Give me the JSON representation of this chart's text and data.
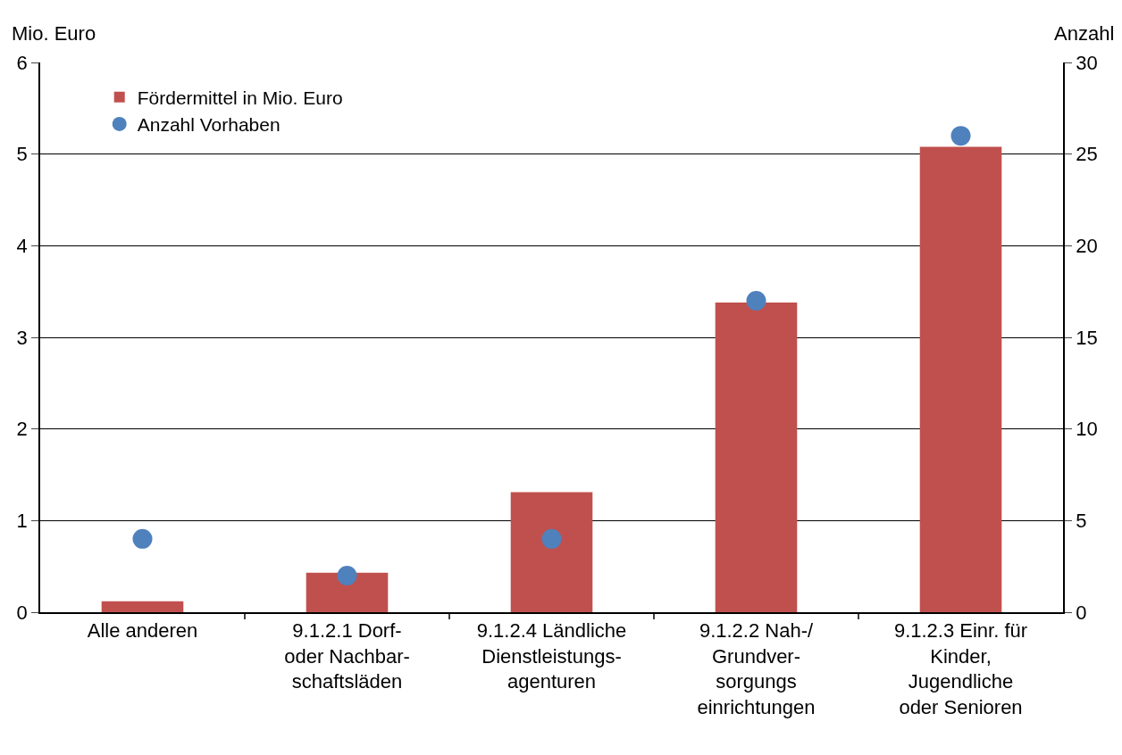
{
  "chart_data": {
    "type": "bar",
    "ylabel": "Mio. Euro",
    "y2label": "Anzahl",
    "categories": [
      "Alle anderen",
      "9.1.2.1 Dorf-\noder Nachbar-\nschaftsläden",
      "9.1.2.4 Ländliche\nDienstleistungs-\nagenturen",
      "9.1.2.2 Nah-/\nGrundver-\nsorgungs\neinrichtungen",
      "9.1.2.3 Einr. für\nKinder,\nJugendliche\noder Senioren"
    ],
    "series": [
      {
        "name": "Fördermittel in Mio. Euro",
        "color": "#c0504d",
        "values": [
          0.12,
          0.43,
          1.31,
          3.38,
          5.08
        ]
      },
      {
        "name": "Anzahl Vorhaben",
        "type": "scatter",
        "axis": "y2",
        "marker": "circle",
        "color": "#4f81bd",
        "values": [
          4,
          2,
          4,
          17,
          26
        ]
      }
    ],
    "ylim": [
      0,
      6
    ],
    "yticks": [
      0,
      1,
      2,
      3,
      4,
      5,
      6
    ],
    "y2lim": [
      0,
      30
    ],
    "y2ticks": [
      0,
      5,
      10,
      15,
      20,
      25,
      30
    ],
    "grid": "y",
    "legend": "top left"
  }
}
